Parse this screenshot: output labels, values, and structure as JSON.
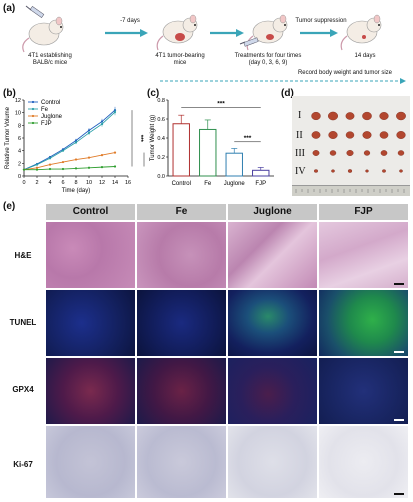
{
  "panel_a": {
    "letter": "(a)",
    "steps": [
      {
        "label_lines": [
          "4T1 establishing",
          "BALB/c mice"
        ]
      },
      {
        "label_lines": [
          "4T1 tumor-bearing",
          "mice"
        ]
      },
      {
        "label_lines": [
          "Treatments for four times",
          "(day 0, 3, 6, 9)"
        ]
      },
      {
        "label_lines": [
          "14 days"
        ]
      }
    ],
    "arrows": [
      "-7 days",
      "",
      "Tumor suppression"
    ],
    "record_text": "Record body weight and tumor size"
  },
  "panel_b": {
    "letter": "(b)",
    "significance": [
      "***",
      "***"
    ]
  },
  "panel_c": {
    "letter": "(c)",
    "significance": [
      "***",
      "***"
    ]
  },
  "panel_d": {
    "letter": "(d)",
    "groups": [
      "I",
      "II",
      "III",
      "IV"
    ]
  },
  "panel_e": {
    "letter": "(e)",
    "columns": [
      "Control",
      "Fe",
      "Juglone",
      "FJP"
    ],
    "rows": [
      "H&E",
      "TUNEL",
      "GPX4",
      "Ki-67"
    ]
  },
  "chart_data": [
    {
      "type": "line",
      "xlabel": "Time (day)",
      "ylabel": "Relative Tumor Volume",
      "x": [
        0,
        2,
        4,
        6,
        8,
        10,
        12,
        14
      ],
      "xlim": [
        0,
        16
      ],
      "ylim": [
        0,
        12
      ],
      "xticks": [
        0,
        2,
        4,
        6,
        8,
        10,
        12,
        14,
        16
      ],
      "yticks": [
        0,
        2,
        4,
        6,
        8,
        10,
        12
      ],
      "legend_position": "top-left",
      "series": [
        {
          "name": "Control",
          "color": "#1f5fbf",
          "values": [
            1.0,
            1.9,
            3.0,
            4.2,
            5.6,
            7.2,
            8.6,
            10.4
          ]
        },
        {
          "name": "Fe",
          "color": "#2a9fa8",
          "values": [
            1.0,
            1.8,
            2.8,
            4.0,
            5.3,
            6.8,
            8.2,
            10.1
          ]
        },
        {
          "name": "Juglone",
          "color": "#e07b28",
          "values": [
            1.0,
            1.3,
            1.8,
            2.2,
            2.6,
            2.9,
            3.3,
            3.7
          ]
        },
        {
          "name": "FJP",
          "color": "#2f9e2f",
          "values": [
            1.0,
            1.0,
            1.1,
            1.1,
            1.2,
            1.3,
            1.4,
            1.5
          ]
        }
      ]
    },
    {
      "type": "bar",
      "ylabel": "Tumor Weight (g)",
      "categories": [
        "Control",
        "Fe",
        "Juglone",
        "FJP"
      ],
      "values": [
        0.55,
        0.49,
        0.24,
        0.06
      ],
      "errors": [
        0.09,
        0.1,
        0.05,
        0.03
      ],
      "colors": [
        "#b0302f",
        "#2f8f4e",
        "#2f7fb0",
        "#4a3fa0"
      ],
      "ylim": [
        0,
        0.8
      ],
      "yticks": [
        0.0,
        0.2,
        0.4,
        0.6,
        0.8
      ]
    }
  ]
}
